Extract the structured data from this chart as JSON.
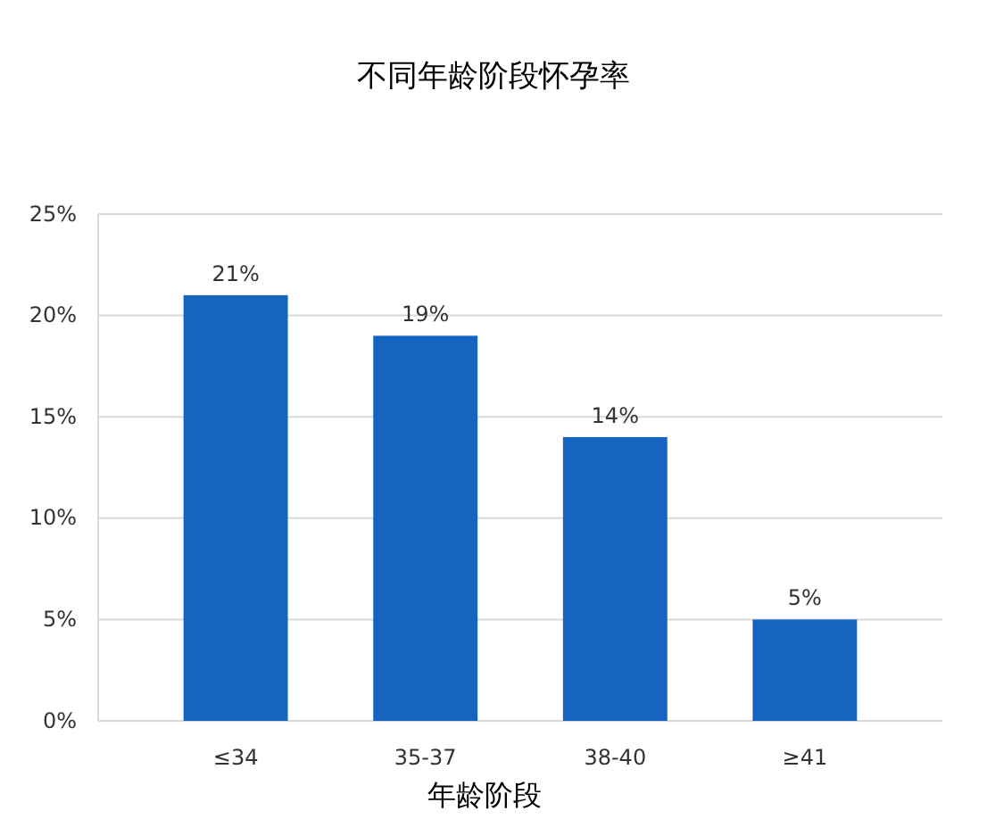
{
  "chart_data": {
    "type": "bar",
    "title": "不同年龄阶段怀孕率",
    "xlabel": "年龄阶段",
    "categories": [
      "≤34",
      "35-37",
      "38-40",
      "≥41"
    ],
    "values": [
      21,
      19,
      14,
      5
    ],
    "value_labels": [
      "21%",
      "19%",
      "14%",
      "5%"
    ],
    "color": "#1565c0",
    "ylim": [
      0,
      25
    ],
    "yticks": [
      {
        "value": 0,
        "label": "0%"
      },
      {
        "value": 5,
        "label": "5%"
      },
      {
        "value": 10,
        "label": "10%"
      },
      {
        "value": 15,
        "label": "15%"
      },
      {
        "value": 20,
        "label": "20%"
      },
      {
        "value": 25,
        "label": "25%"
      }
    ],
    "grid": "y"
  }
}
